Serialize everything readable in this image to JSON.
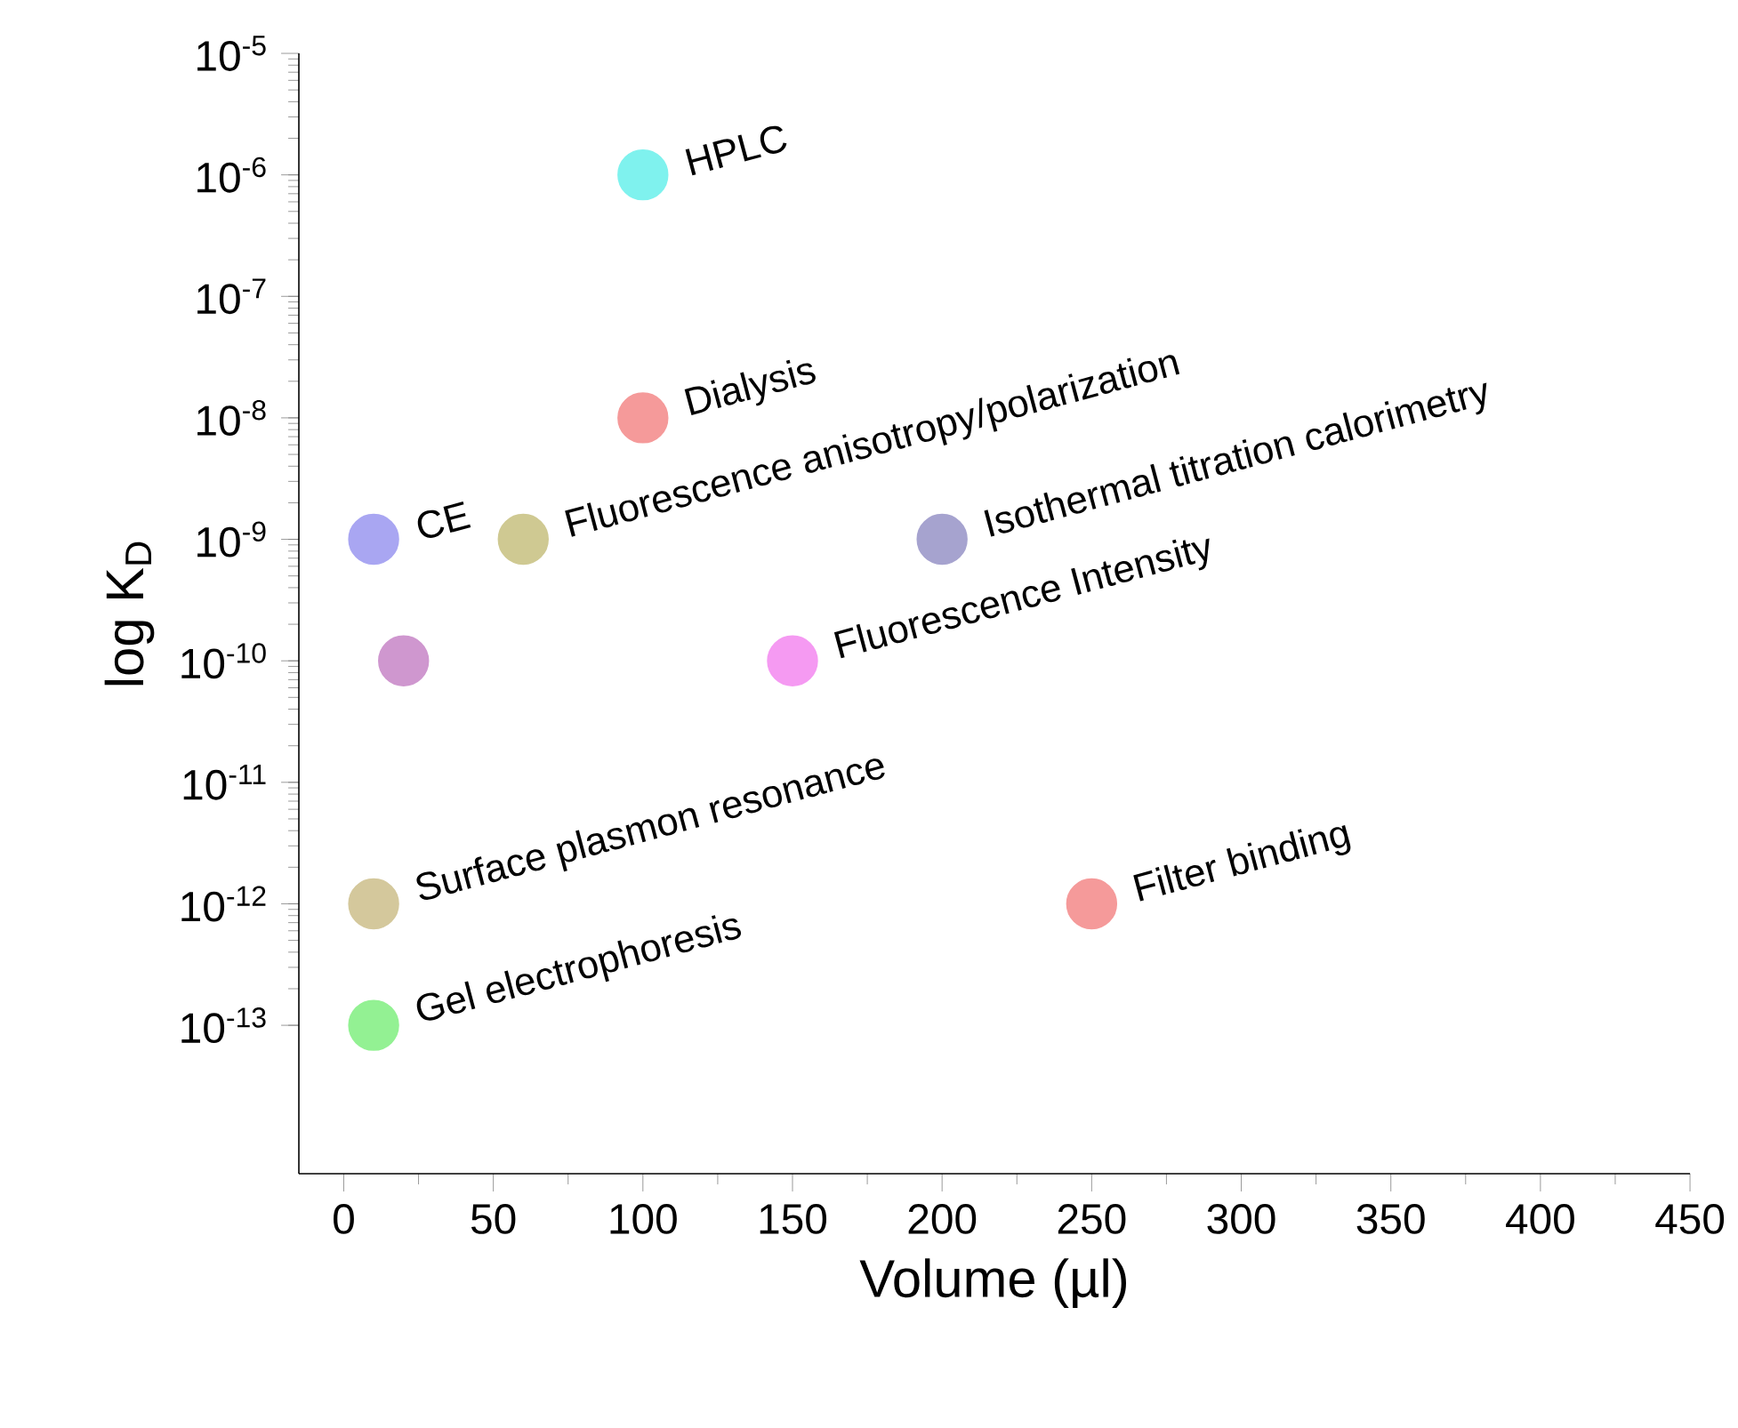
{
  "chart_data": {
    "type": "scatter",
    "xlabel": "Volume (µl)",
    "ylabel": "log K$_{D}$",
    "log": "y",
    "xlim": [
      -15,
      450
    ],
    "ylim": [
      6e-15,
      1e-05
    ],
    "xticks": [
      0,
      50,
      100,
      150,
      200,
      250,
      300,
      350,
      400,
      450
    ],
    "yticks": [
      {
        "value": 1e-13,
        "label": "10$^{-13}$"
      },
      {
        "value": 1e-12,
        "label": "10$^{-12}$"
      },
      {
        "value": 1e-11,
        "label": "10$^{-11}$"
      },
      {
        "value": 1e-10,
        "label": "10$^{-10}$"
      },
      {
        "value": 1e-09,
        "label": "10$^{-9}$"
      },
      {
        "value": 1e-08,
        "label": "10$^{-8}$"
      },
      {
        "value": 1e-07,
        "label": "10$^{-7}$"
      },
      {
        "value": 1e-06,
        "label": "10$^{-6}$"
      },
      {
        "value": 1e-05,
        "label": "10$^{-5}$"
      }
    ],
    "marker": "circle",
    "grid": false,
    "series": [
      {
        "x": [
          100,
          100,
          10,
          60,
          200,
          20,
          150,
          10,
          250,
          10
        ],
        "values": [
          1e-06,
          1e-08,
          1e-09,
          1e-09,
          1e-09,
          1e-10,
          1e-10,
          1e-12,
          1e-12,
          1e-13
        ],
        "colors": [
          "#7ff2ee",
          "#f59a9a",
          "#a9a6f2",
          "#cfc992",
          "#a6a3cf",
          "#cf97cf",
          "#f59af2",
          "#d4c89c",
          "#f59a9a",
          "#93f193"
        ]
      }
    ],
    "annotations": [
      {
        "text": "HPLC",
        "x": 100,
        "y": 1e-06
      },
      {
        "text": "Dialysis",
        "x": 100,
        "y": 1e-08
      },
      {
        "text": "CE",
        "x": 10,
        "y": 1e-09
      },
      {
        "text": "Fluorescence anisotropy/polarization",
        "x": 60,
        "y": 1e-09
      },
      {
        "text": "Isothermal titration calorimetry",
        "x": 200,
        "y": 1e-09
      },
      {
        "text": "Fluorescence Intensity",
        "x": 150,
        "y": 1e-10
      },
      {
        "text": "Surface plasmon resonance",
        "x": 10,
        "y": 1e-12
      },
      {
        "text": "Filter binding",
        "x": 250,
        "y": 1e-12
      },
      {
        "text": "Gel electrophoresis",
        "x": 10,
        "y": 1e-13
      }
    ]
  }
}
